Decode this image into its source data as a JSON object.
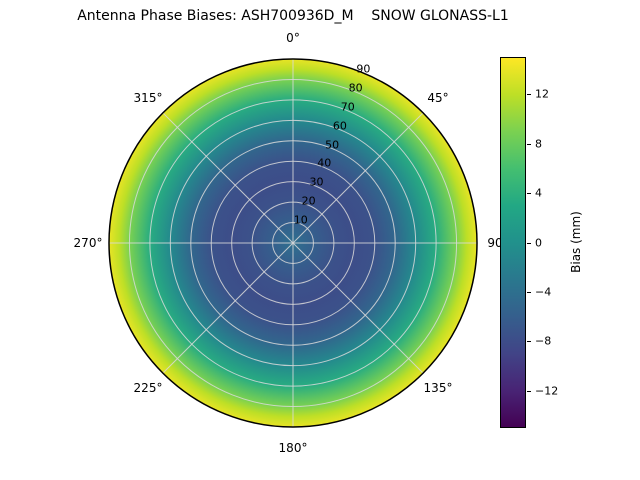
{
  "chart_data": {
    "type": "heatmap",
    "projection": "polar",
    "title": "Antenna Phase Biases: ASH700936D_M    SNOW GLONASS-L1",
    "angular_direction": "clockwise",
    "zero_location": "top",
    "angular_tick_labels": [
      "0°",
      "45°",
      "90°",
      "135°",
      "180°",
      "225°",
      "270°",
      "315°"
    ],
    "radial_tick_labels": [
      "10",
      "20",
      "30",
      "40",
      "50",
      "60",
      "70",
      "80",
      "90"
    ],
    "radial_range": [
      0,
      90
    ],
    "radial_label_angle_deg": 22.5,
    "grid": true,
    "colorbar": {
      "label": "Bias (mm)",
      "tick_labels": [
        "12",
        "8",
        "4",
        "0",
        "−4",
        "−8",
        "−12"
      ],
      "vmin": -15,
      "vmax": 15,
      "colormap": "viridis"
    },
    "radial_profile": [
      {
        "zenith": 0,
        "bias_mm": -4
      },
      {
        "zenith": 10,
        "bias_mm": -6
      },
      {
        "zenith": 20,
        "bias_mm": -7.5
      },
      {
        "zenith": 30,
        "bias_mm": -8
      },
      {
        "zenith": 40,
        "bias_mm": -7.5
      },
      {
        "zenith": 50,
        "bias_mm": -5
      },
      {
        "zenith": 60,
        "bias_mm": -1
      },
      {
        "zenith": 70,
        "bias_mm": 3.5
      },
      {
        "zenith": 80,
        "bias_mm": 9
      },
      {
        "zenith": 85,
        "bias_mm": 12
      },
      {
        "zenith": 90,
        "bias_mm": 14
      }
    ],
    "viridis_stops": [
      {
        "t": 0.0,
        "color": "#440154"
      },
      {
        "t": 0.1,
        "color": "#482475"
      },
      {
        "t": 0.2,
        "color": "#414487"
      },
      {
        "t": 0.3,
        "color": "#355f8d"
      },
      {
        "t": 0.4,
        "color": "#2a788e"
      },
      {
        "t": 0.5,
        "color": "#21918c"
      },
      {
        "t": 0.6,
        "color": "#22a884"
      },
      {
        "t": 0.7,
        "color": "#44bf70"
      },
      {
        "t": 0.8,
        "color": "#7ad151"
      },
      {
        "t": 0.9,
        "color": "#bddf26"
      },
      {
        "t": 1.0,
        "color": "#fde725"
      }
    ],
    "grid_color": "#d9d9d9",
    "spine_color": "#000000"
  }
}
